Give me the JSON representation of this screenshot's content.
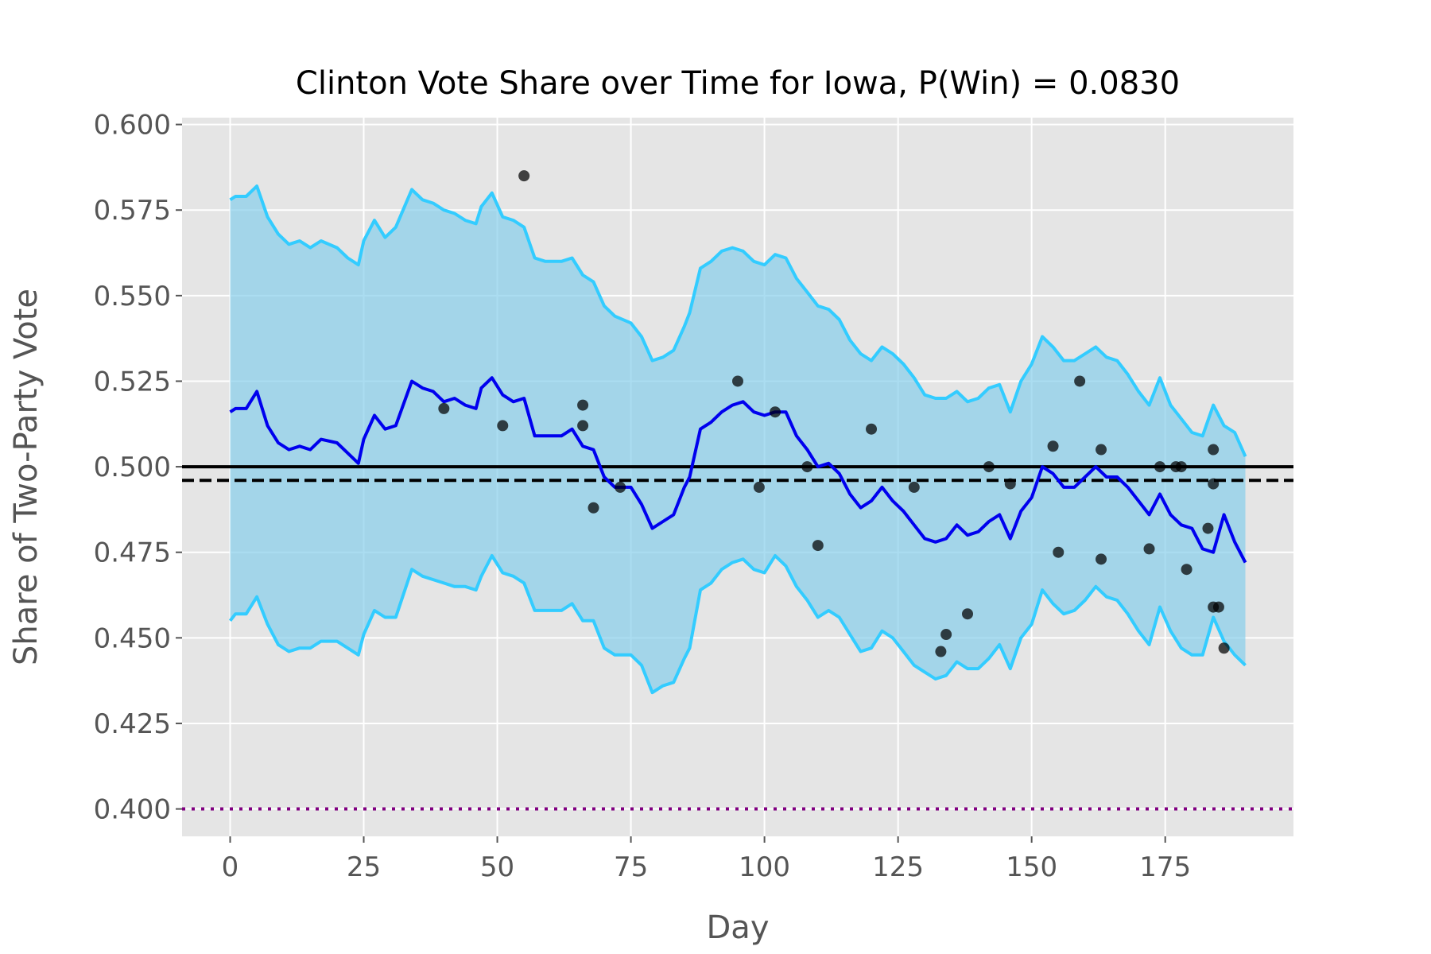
{
  "chart_data": {
    "type": "line",
    "title": "Clinton Vote Share over Time for Iowa, P(Win) = 0.0830",
    "xlabel": "Day",
    "ylabel": "Share of Two-Party Vote",
    "xlim": [
      -9,
      199
    ],
    "ylim": [
      0.392,
      0.602
    ],
    "xticks": [
      "0",
      "25",
      "50",
      "75",
      "100",
      "125",
      "150",
      "175"
    ],
    "yticks": [
      "0.400",
      "0.425",
      "0.450",
      "0.475",
      "0.500",
      "0.525",
      "0.550",
      "0.575",
      "0.600"
    ],
    "grid": true,
    "background": "#e5e5e5",
    "colors": {
      "mean": "#0000ee",
      "band_line": "#33ccff",
      "band_fill": "#87ceeb",
      "polls": "#000000",
      "reference": "#000000",
      "floor": "#800080"
    },
    "reference_lines": [
      {
        "y": 0.5,
        "style": "solid"
      },
      {
        "y": 0.496,
        "style": "dashed"
      },
      {
        "y": 0.4,
        "style": "dotted"
      }
    ],
    "series": [
      {
        "role": "mean",
        "x": [
          0,
          1,
          3,
          5,
          7,
          9,
          11,
          13,
          15,
          17,
          20,
          22,
          24,
          25,
          27,
          29,
          31,
          34,
          36,
          38,
          40,
          42,
          44,
          46,
          47,
          49,
          51,
          53,
          55,
          57,
          59,
          62,
          64,
          66,
          68,
          70,
          72,
          75,
          77,
          79,
          81,
          83,
          85,
          86,
          88,
          90,
          92,
          94,
          96,
          98,
          100,
          102,
          104,
          106,
          108,
          110,
          112,
          114,
          116,
          118,
          120,
          122,
          124,
          126,
          128,
          130,
          132,
          134,
          136,
          138,
          140,
          142,
          144,
          146,
          148,
          150,
          152,
          154,
          156,
          158,
          160,
          162,
          164,
          166,
          168,
          170,
          172,
          174,
          176,
          178,
          180,
          182,
          184,
          186,
          188,
          190
        ],
        "y": [
          0.516,
          0.517,
          0.517,
          0.522,
          0.512,
          0.507,
          0.505,
          0.506,
          0.505,
          0.508,
          0.507,
          0.504,
          0.501,
          0.508,
          0.515,
          0.511,
          0.512,
          0.525,
          0.523,
          0.522,
          0.519,
          0.52,
          0.518,
          0.517,
          0.523,
          0.526,
          0.521,
          0.519,
          0.52,
          0.509,
          0.509,
          0.509,
          0.511,
          0.506,
          0.505,
          0.497,
          0.494,
          0.494,
          0.489,
          0.482,
          0.484,
          0.486,
          0.494,
          0.497,
          0.511,
          0.513,
          0.516,
          0.518,
          0.519,
          0.516,
          0.515,
          0.516,
          0.516,
          0.509,
          0.505,
          0.5,
          0.501,
          0.498,
          0.492,
          0.488,
          0.49,
          0.494,
          0.49,
          0.487,
          0.483,
          0.479,
          0.478,
          0.479,
          0.483,
          0.48,
          0.481,
          0.484,
          0.486,
          0.479,
          0.487,
          0.491,
          0.5,
          0.498,
          0.494,
          0.494,
          0.497,
          0.5,
          0.497,
          0.497,
          0.494,
          0.49,
          0.486,
          0.492,
          0.486,
          0.483,
          0.482,
          0.476,
          0.475,
          0.486,
          0.478,
          0.472
        ]
      },
      {
        "role": "upper",
        "x": [
          0,
          1,
          3,
          5,
          7,
          9,
          11,
          13,
          15,
          17,
          20,
          22,
          24,
          25,
          27,
          29,
          31,
          34,
          36,
          38,
          40,
          42,
          44,
          46,
          47,
          49,
          51,
          53,
          55,
          57,
          59,
          62,
          64,
          66,
          68,
          70,
          72,
          75,
          77,
          79,
          81,
          83,
          85,
          86,
          88,
          90,
          92,
          94,
          96,
          98,
          100,
          102,
          104,
          106,
          108,
          110,
          112,
          114,
          116,
          118,
          120,
          122,
          124,
          126,
          128,
          130,
          132,
          134,
          136,
          138,
          140,
          142,
          144,
          146,
          148,
          150,
          152,
          154,
          156,
          158,
          160,
          162,
          164,
          166,
          168,
          170,
          172,
          174,
          176,
          178,
          180,
          182,
          184,
          186,
          188,
          190
        ],
        "y": [
          0.578,
          0.579,
          0.579,
          0.582,
          0.573,
          0.568,
          0.565,
          0.566,
          0.564,
          0.566,
          0.564,
          0.561,
          0.559,
          0.566,
          0.572,
          0.567,
          0.57,
          0.581,
          0.578,
          0.577,
          0.575,
          0.574,
          0.572,
          0.571,
          0.576,
          0.58,
          0.573,
          0.572,
          0.57,
          0.561,
          0.56,
          0.56,
          0.561,
          0.556,
          0.554,
          0.547,
          0.544,
          0.542,
          0.538,
          0.531,
          0.532,
          0.534,
          0.541,
          0.545,
          0.558,
          0.56,
          0.563,
          0.564,
          0.563,
          0.56,
          0.559,
          0.562,
          0.561,
          0.555,
          0.551,
          0.547,
          0.546,
          0.543,
          0.537,
          0.533,
          0.531,
          0.535,
          0.533,
          0.53,
          0.526,
          0.521,
          0.52,
          0.52,
          0.522,
          0.519,
          0.52,
          0.523,
          0.524,
          0.516,
          0.525,
          0.53,
          0.538,
          0.535,
          0.531,
          0.531,
          0.533,
          0.535,
          0.532,
          0.531,
          0.527,
          0.522,
          0.518,
          0.526,
          0.518,
          0.514,
          0.51,
          0.509,
          0.518,
          0.512,
          0.51,
          0.503
        ]
      },
      {
        "role": "lower",
        "x": [
          0,
          1,
          3,
          5,
          7,
          9,
          11,
          13,
          15,
          17,
          20,
          22,
          24,
          25,
          27,
          29,
          31,
          34,
          36,
          38,
          40,
          42,
          44,
          46,
          47,
          49,
          51,
          53,
          55,
          57,
          59,
          62,
          64,
          66,
          68,
          70,
          72,
          75,
          77,
          79,
          81,
          83,
          85,
          86,
          88,
          90,
          92,
          94,
          96,
          98,
          100,
          102,
          104,
          106,
          108,
          110,
          112,
          114,
          116,
          118,
          120,
          122,
          124,
          126,
          128,
          130,
          132,
          134,
          136,
          138,
          140,
          142,
          144,
          146,
          148,
          150,
          152,
          154,
          156,
          158,
          160,
          162,
          164,
          166,
          168,
          170,
          172,
          174,
          176,
          178,
          180,
          182,
          184,
          186,
          188,
          190
        ],
        "y": [
          0.455,
          0.457,
          0.457,
          0.462,
          0.454,
          0.448,
          0.446,
          0.447,
          0.447,
          0.449,
          0.449,
          0.447,
          0.445,
          0.451,
          0.458,
          0.456,
          0.456,
          0.47,
          0.468,
          0.467,
          0.466,
          0.465,
          0.465,
          0.464,
          0.468,
          0.474,
          0.469,
          0.468,
          0.466,
          0.458,
          0.458,
          0.458,
          0.46,
          0.455,
          0.455,
          0.447,
          0.445,
          0.445,
          0.442,
          0.434,
          0.436,
          0.437,
          0.444,
          0.447,
          0.464,
          0.466,
          0.47,
          0.472,
          0.473,
          0.47,
          0.469,
          0.474,
          0.471,
          0.465,
          0.461,
          0.456,
          0.458,
          0.456,
          0.451,
          0.446,
          0.447,
          0.452,
          0.45,
          0.446,
          0.442,
          0.44,
          0.438,
          0.439,
          0.443,
          0.441,
          0.441,
          0.444,
          0.448,
          0.441,
          0.45,
          0.454,
          0.464,
          0.46,
          0.457,
          0.458,
          0.461,
          0.465,
          0.462,
          0.461,
          0.457,
          0.452,
          0.448,
          0.459,
          0.452,
          0.447,
          0.445,
          0.445,
          0.456,
          0.449,
          0.445,
          0.442
        ]
      },
      {
        "role": "polls",
        "type": "scatter",
        "x": [
          40,
          51,
          55,
          66,
          66,
          68,
          73,
          95,
          99,
          102,
          108,
          110,
          120,
          128,
          133,
          134,
          138,
          142,
          146,
          154,
          155,
          159,
          163,
          163,
          172,
          174,
          177,
          178,
          179,
          183,
          184,
          184,
          184,
          185,
          186
        ],
        "y": [
          0.517,
          0.512,
          0.585,
          0.518,
          0.512,
          0.488,
          0.494,
          0.525,
          0.494,
          0.516,
          0.5,
          0.477,
          0.511,
          0.494,
          0.446,
          0.451,
          0.457,
          0.5,
          0.495,
          0.506,
          0.475,
          0.525,
          0.473,
          0.505,
          0.476,
          0.5,
          0.5,
          0.5,
          0.47,
          0.482,
          0.505,
          0.495,
          0.459,
          0.459,
          0.447
        ]
      }
    ]
  }
}
